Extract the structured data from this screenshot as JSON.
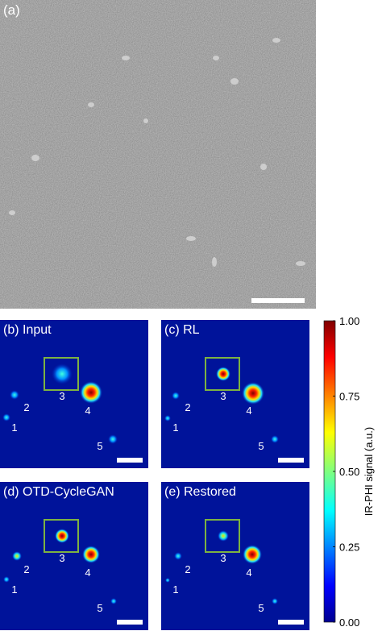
{
  "panels": [
    {
      "label": "(a)"
    },
    {
      "label": "(b) Input",
      "markers": [
        "3",
        "4",
        "2",
        "1",
        "5"
      ]
    },
    {
      "label": "(c) RL",
      "markers": [
        "3",
        "4",
        "2",
        "1",
        "5"
      ]
    },
    {
      "label": "(d) OTD-CycleGAN",
      "markers": [
        "3",
        "4",
        "2",
        "1",
        "5"
      ]
    },
    {
      "label": "(e) Restored",
      "markers": [
        "3",
        "4",
        "2",
        "1",
        "5"
      ]
    }
  ],
  "colorbar": {
    "title": "IR-PHI signal (a.u.)",
    "lim": [
      0,
      1
    ],
    "ticks": [
      {
        "value": 0,
        "label": "0.00"
      },
      {
        "value": 0.25,
        "label": "0.25"
      },
      {
        "value": 0.5,
        "label": "0.50"
      },
      {
        "value": 0.75,
        "label": "0.75"
      },
      {
        "value": 1,
        "label": "1.00"
      }
    ]
  }
}
